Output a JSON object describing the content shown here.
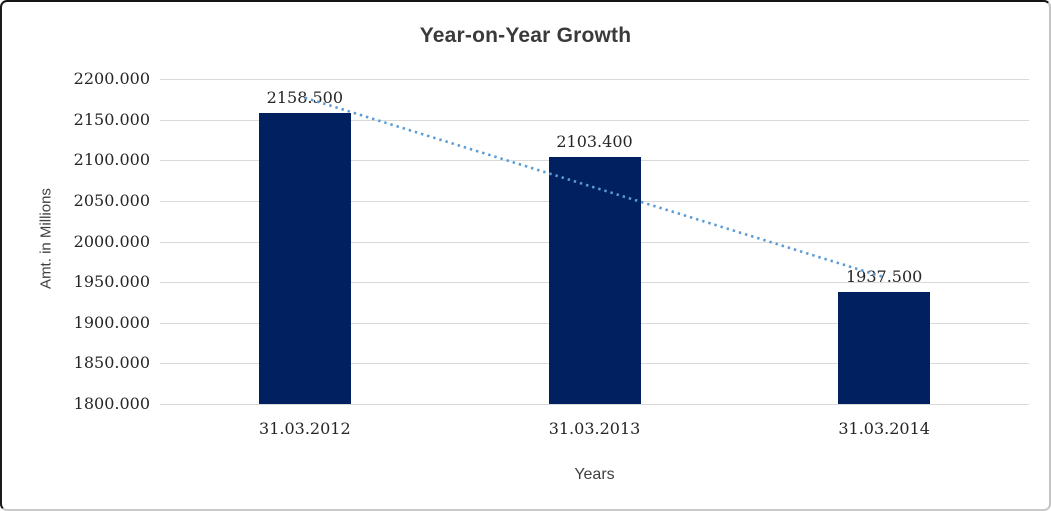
{
  "chart_data": {
    "type": "bar",
    "title": "Year-on-Year Growth",
    "xlabel": "Years",
    "ylabel": "Amt. in Millions",
    "categories": [
      "31.03.2012",
      "31.03.2013",
      "31.03.2014"
    ],
    "values": [
      2158.5,
      2103.4,
      1937.5
    ],
    "data_labels": [
      "2158.500",
      "2103.400",
      "1937.500"
    ],
    "ylim": [
      1800,
      2200
    ],
    "ytick_step": 50,
    "ytick_labels": [
      "2200.000",
      "2150.000",
      "2100.000",
      "2050.000",
      "2000.000",
      "1950.000",
      "1900.000",
      "1850.000",
      "1800.000"
    ],
    "grid": true,
    "legend": "none",
    "trendline": {
      "type": "linear",
      "style": "dotted",
      "color": "#5b9bd5"
    },
    "colors": {
      "bar": "#002060",
      "gridline": "#d9d9d9",
      "tick_text": "#262626",
      "title_text": "#3a3a3a",
      "axis_title_text": "#404040",
      "frame_bg": "#ffffff"
    }
  }
}
